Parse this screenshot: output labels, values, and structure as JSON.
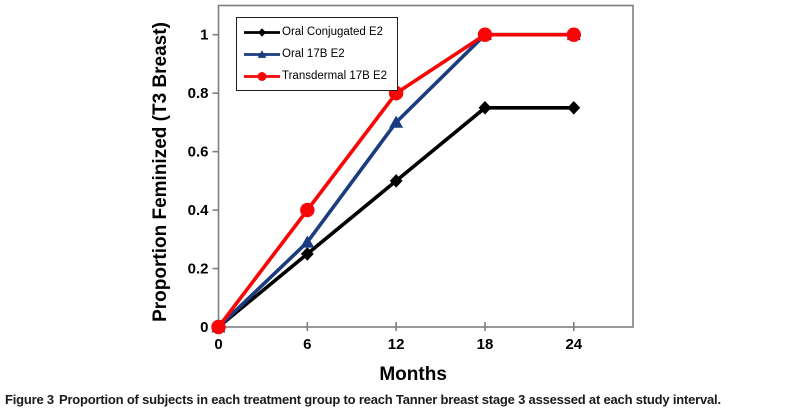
{
  "figure": {
    "caption_label": "Figure 3",
    "caption_text": "Proportion of subjects in each treatment group to reach Tanner breast stage 3 assessed at each study interval."
  },
  "chart_data": {
    "type": "line",
    "x": [
      0,
      6,
      12,
      18,
      24
    ],
    "series": [
      {
        "name": "Oral Conjugated E2",
        "color": "#000000",
        "marker": "diamond",
        "values": [
          0,
          0.25,
          0.5,
          0.75,
          0.75
        ]
      },
      {
        "name": "Oral 17B E2",
        "color": "#1b3c7e",
        "marker": "triangle",
        "values": [
          0,
          0.29,
          0.7,
          1,
          1
        ]
      },
      {
        "name": "Transdermal 17B E2",
        "color": "#f80505",
        "marker": "circle",
        "values": [
          0,
          0.4,
          0.8,
          1,
          1
        ]
      }
    ],
    "xlabel": "Months",
    "ylabel": "Proportion Feminized (T3 Breast)",
    "xticks": [
      0,
      6,
      12,
      18,
      24
    ],
    "yticks": [
      0,
      0.2,
      0.4,
      0.6,
      0.8,
      1
    ],
    "xlim": [
      0,
      28
    ],
    "ylim": [
      0,
      1.1
    ],
    "grid": false,
    "legend_position": "top-left",
    "axis_color": "#7f7f7f",
    "plot_background": "#ffffff"
  }
}
